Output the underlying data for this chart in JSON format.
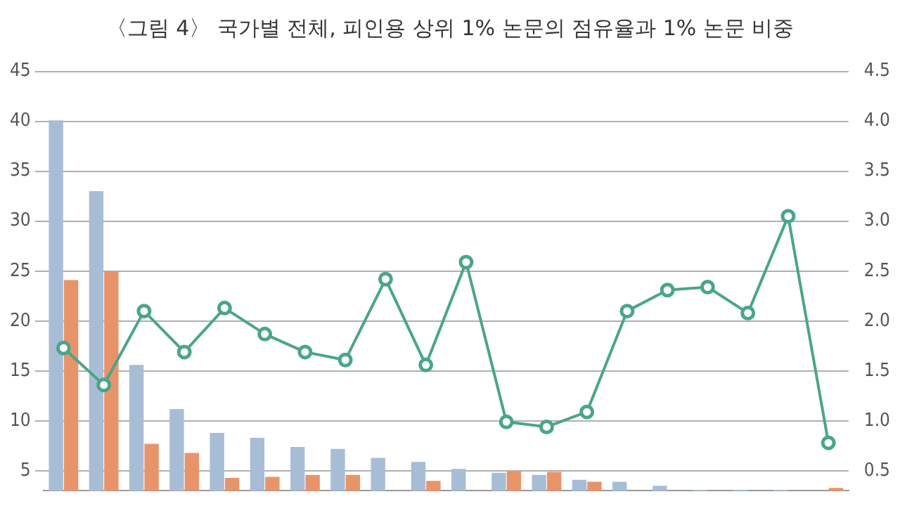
{
  "chart_data": {
    "type": "bar",
    "title": "〈그림 4〉 국가별 전체, 피인용 상위 1% 논문의 점유율과 1% 논문 비중",
    "categories": [
      null,
      null,
      null,
      null,
      null,
      null,
      null,
      null,
      null,
      null,
      null,
      null,
      null,
      null,
      null,
      null,
      null,
      null,
      null,
      null
    ],
    "series": [
      {
        "color": "#a7bdd6",
        "values": [
          40.1,
          33.0,
          15.6,
          11.2,
          8.8,
          8.3,
          7.4,
          7.2,
          6.3,
          5.9,
          5.2,
          4.8,
          4.6,
          4.1,
          3.9,
          3.5,
          3.1,
          3.1,
          3.1,
          null
        ]
      },
      {
        "color": "#e8946a",
        "values": [
          24.1,
          25.0,
          7.7,
          6.8,
          4.3,
          4.4,
          4.6,
          4.6,
          null,
          4.0,
          null,
          5.0,
          4.9,
          3.9,
          null,
          null,
          null,
          null,
          null,
          3.3
        ]
      },
      {
        "type": "line",
        "axis": "y2",
        "color": "#4aa58a",
        "marker": "circle",
        "values": [
          1.73,
          1.36,
          2.1,
          1.69,
          2.13,
          1.87,
          1.69,
          1.61,
          2.42,
          1.56,
          2.59,
          0.99,
          0.94,
          1.09,
          2.1,
          2.31,
          2.34,
          2.08,
          3.05,
          0.78
        ]
      }
    ],
    "ylim": [
      3,
      45
    ],
    "yticks": [
      5,
      10,
      15,
      20,
      25,
      30,
      35,
      40,
      45
    ],
    "y2lim": [
      0.3,
      4.5
    ],
    "y2ticks": [
      {
        "value": 0.5,
        "label": "0.5"
      },
      {
        "value": 1,
        "label": "1.0"
      },
      {
        "value": 1.5,
        "label": "1.5"
      },
      {
        "value": 2,
        "label": "2.0"
      },
      {
        "value": 2.5,
        "label": "2.5"
      },
      {
        "value": 3,
        "label": "3.0"
      },
      {
        "value": 3.5,
        "label": "3.5"
      },
      {
        "value": 4,
        "label": "4.0"
      },
      {
        "value": 4.5,
        "label": "4.5"
      }
    ],
    "grid": "y",
    "legend": false
  }
}
